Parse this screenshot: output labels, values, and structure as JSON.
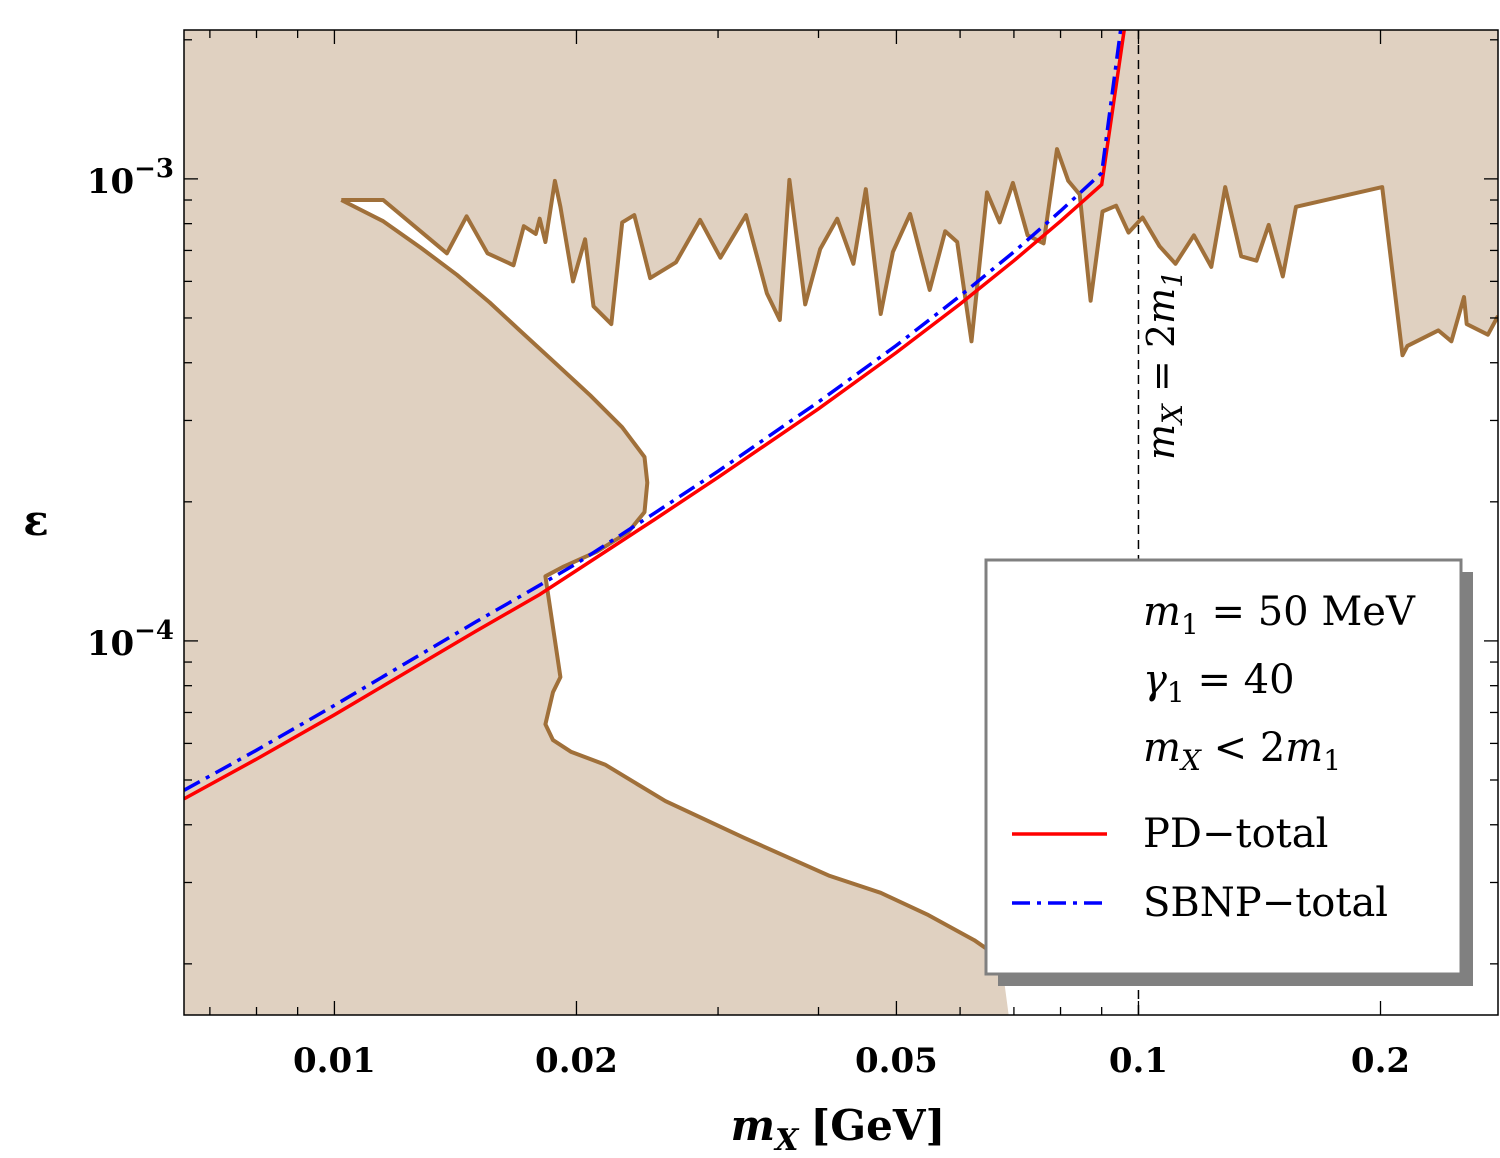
{
  "chart_data": {
    "type": "line",
    "title": "",
    "xlabel_var": "m",
    "xlabel_sub": "X",
    "xlabel_unit": "[GeV]",
    "ylabel": "ε",
    "xscale": "log",
    "yscale": "log",
    "xlim": [
      0.0065,
      0.28
    ],
    "ylim": [
      1.55e-05,
      0.0021
    ],
    "x_ticks": [
      {
        "value": 0.01,
        "label": "0.01"
      },
      {
        "value": 0.02,
        "label": "0.02"
      },
      {
        "value": 0.05,
        "label": "0.05"
      },
      {
        "value": 0.1,
        "label": "0.1"
      },
      {
        "value": 0.2,
        "label": "0.2"
      }
    ],
    "y_ticks": [
      {
        "value": 0.001,
        "base": "10",
        "exp": "−3"
      },
      {
        "value": 0.0001,
        "base": "10",
        "exp": "−4"
      }
    ],
    "colors": {
      "excluded_fill": "#e0d1c1",
      "excluded_edge": "#a0703a",
      "pd_total": "#ff0000",
      "sbnp_total": "#0000ff",
      "vline": "#000000"
    },
    "series": [
      {
        "name": "PD−total",
        "style": "solid",
        "x": [
          0.0065,
          0.008,
          0.01,
          0.012,
          0.015,
          0.018,
          0.02,
          0.025,
          0.03,
          0.04,
          0.05,
          0.06,
          0.07,
          0.08,
          0.09,
          0.096
        ],
        "y": [
          4.55e-05,
          5.55e-05,
          6.92e-05,
          8.35e-05,
          0.000105,
          0.000126,
          0.000142,
          0.000183,
          0.000226,
          0.000318,
          0.000421,
          0.000536,
          0.000665,
          0.00081,
          0.000972,
          0.0021
        ]
      },
      {
        "name": "SBNP−total",
        "style": "dashdot",
        "x": [
          0.0065,
          0.008,
          0.01,
          0.012,
          0.015,
          0.018,
          0.02,
          0.025,
          0.03,
          0.04,
          0.05,
          0.06,
          0.07,
          0.08,
          0.09,
          0.095
        ],
        "y": [
          4.75e-05,
          5.8e-05,
          7.25e-05,
          8.75e-05,
          0.00011,
          0.000132,
          0.000147,
          0.000189,
          0.000233,
          0.000329,
          0.000436,
          0.000558,
          0.000695,
          0.000852,
          0.00103,
          0.0021
        ]
      }
    ],
    "excluded_lower_boundary": {
      "x": [
        0.0102,
        0.0115,
        0.0128,
        0.0142,
        0.0156,
        0.017,
        0.0188,
        0.0208,
        0.0228,
        0.0243,
        0.0245,
        0.0243,
        0.0232,
        0.0212,
        0.0193,
        0.0183,
        0.0191,
        0.0187,
        0.0183,
        0.0187,
        0.0197,
        0.0217,
        0.0258,
        0.0323,
        0.0413,
        0.0478,
        0.0548,
        0.0625,
        0.0675
      ],
      "y": [
        0.0009,
        0.00081,
        0.00071,
        0.00062,
        0.00054,
        0.00047,
        0.0004,
        0.00034,
        0.00029,
        0.00025,
        0.00022,
        0.00019,
        0.000172,
        0.000156,
        0.000145,
        0.000138,
        8.35e-05,
        7.75e-05,
        6.6e-05,
        6.1e-05,
        5.75e-05,
        5.4e-05,
        4.5e-05,
        3.75e-05,
        3.1e-05,
        2.85e-05,
        2.55e-05,
        2.25e-05,
        2.05e-05
      ]
    },
    "excluded_upper_boundary": {
      "x": [
        0.0102,
        0.0115,
        0.0128,
        0.0138,
        0.0146,
        0.0155,
        0.0167,
        0.0172,
        0.0178,
        0.018,
        0.0183,
        0.0188,
        0.0191,
        0.0198,
        0.0205,
        0.021,
        0.0221,
        0.0228,
        0.0236,
        0.0247,
        0.0266,
        0.0285,
        0.0302,
        0.0325,
        0.0345,
        0.0358,
        0.0368,
        0.0385,
        0.0402,
        0.0422,
        0.0442,
        0.0458,
        0.0478,
        0.0495,
        0.052,
        0.055,
        0.0575,
        0.0595,
        0.062,
        0.0648,
        0.0672,
        0.0698,
        0.0728,
        0.0762,
        0.0792,
        0.0818,
        0.0845,
        0.0872,
        0.0902,
        0.0938,
        0.0972,
        0.1012,
        0.1062,
        0.1112,
        0.1172,
        0.1232,
        0.1282,
        0.1342,
        0.1402,
        0.1452,
        0.1512,
        0.157,
        0.201,
        0.213,
        0.216,
        0.236,
        0.245,
        0.254,
        0.256,
        0.272,
        0.28
      ],
      "y": [
        0.0009,
        0.0009,
        0.00077,
        0.00069,
        0.00083,
        0.00069,
        0.00065,
        0.00079,
        0.00076,
        0.00082,
        0.00073,
        0.00099,
        0.00087,
        0.0006,
        0.00074,
        0.00053,
        0.000485,
        0.000805,
        0.000835,
        0.00061,
        0.00066,
        0.000815,
        0.000675,
        0.000835,
        0.000565,
        0.000495,
        0.000995,
        0.000535,
        0.000705,
        0.00082,
        0.000655,
        0.00095,
        0.00051,
        0.000695,
        0.00084,
        0.000575,
        0.00077,
        0.00073,
        0.000445,
        0.000935,
        0.000805,
        0.00098,
        0.000755,
        0.000725,
        0.00116,
        0.00099,
        0.000925,
        0.000545,
        0.00085,
        0.000875,
        0.000765,
        0.000825,
        0.000715,
        0.000655,
        0.000755,
        0.000645,
        0.00096,
        0.00068,
        0.000665,
        0.000795,
        0.000615,
        0.00087,
        0.00096,
        0.000415,
        0.000435,
        0.00047,
        0.000445,
        0.000555,
        0.000485,
        0.00046,
        0.000505
      ]
    },
    "annotations": [
      {
        "type": "vline",
        "x": 0.1,
        "text_var": "m",
        "text_sub": "X",
        "text_rest": " = 2",
        "text_var2": "m",
        "text_sub2": "1"
      }
    ],
    "legend": {
      "position": "bottom-right",
      "params": [
        {
          "var": "m",
          "sub": "1",
          "rest": " = 50 MeV"
        },
        {
          "var": "γ",
          "sub": "1",
          "rest": " = 40"
        },
        {
          "var": "m",
          "sub": "X",
          "rest": " < 2",
          "var2": "m",
          "sub2": "1"
        }
      ],
      "entries": [
        "PD−total",
        "SBNP−total"
      ]
    }
  }
}
